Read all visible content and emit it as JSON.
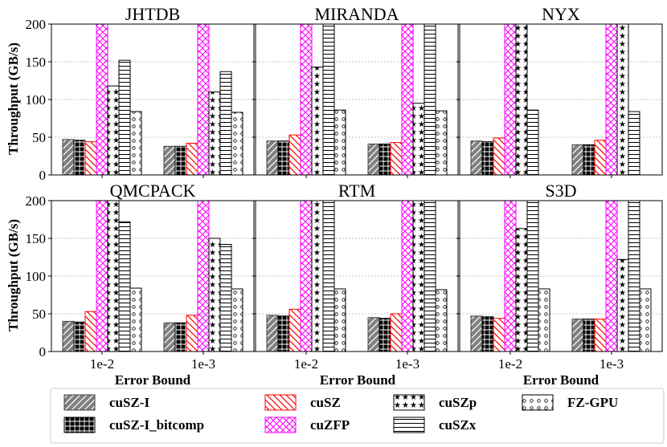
{
  "chart_data": {
    "type": "bar",
    "ylabel": "Throughput (GB/s)",
    "xlabel": "Error Bound",
    "ylim": [
      0,
      200
    ],
    "yticks": [
      0,
      50,
      100,
      150,
      200
    ],
    "categories": [
      "1e-2",
      "1e-3"
    ],
    "grid": "horizontal dashed",
    "legend_position": "bottom",
    "series_meta": [
      {
        "name": "cuSZ-I",
        "color": "#808080",
        "pattern": "diagonal"
      },
      {
        "name": "cuSZ-I_bitcomp",
        "color": "#000000",
        "pattern": "dense-grid"
      },
      {
        "name": "cuSZ",
        "color": "#ff0000",
        "pattern": "back-diagonal"
      },
      {
        "name": "cuZFP",
        "color": "#ff00ff",
        "pattern": "crosshatch"
      },
      {
        "name": "cuSZp",
        "color": "#000000",
        "pattern": "stars"
      },
      {
        "name": "cuSZx",
        "color": "#000000",
        "pattern": "horizontal-lines"
      },
      {
        "name": "FZ-GPU",
        "color": "#000000",
        "pattern": "small-circles"
      }
    ],
    "panels": [
      {
        "title": "JHTDB",
        "values": [
          [
            47,
            38
          ],
          [
            46,
            38
          ],
          [
            44,
            42
          ],
          [
            200,
            200
          ],
          [
            118,
            110
          ],
          [
            152,
            137
          ],
          [
            84,
            83
          ]
        ]
      },
      {
        "title": "MIRANDA",
        "values": [
          [
            45,
            41
          ],
          [
            45,
            41
          ],
          [
            53,
            43
          ],
          [
            200,
            200
          ],
          [
            143,
            95
          ],
          [
            200,
            200
          ],
          [
            86,
            85
          ]
        ]
      },
      {
        "title": "NYX",
        "values": [
          [
            45,
            40
          ],
          [
            44,
            40
          ],
          [
            49,
            46
          ],
          [
            200,
            200
          ],
          [
            200,
            200
          ],
          [
            86,
            84
          ],
          [
            0,
            0
          ]
        ]
      },
      {
        "title": "QMCPACK",
        "values": [
          [
            40,
            38
          ],
          [
            39,
            38
          ],
          [
            53,
            48
          ],
          [
            200,
            200
          ],
          [
            200,
            150
          ],
          [
            172,
            142
          ],
          [
            84,
            83
          ]
        ]
      },
      {
        "title": "RTM",
        "values": [
          [
            48,
            45
          ],
          [
            47,
            44
          ],
          [
            56,
            50
          ],
          [
            200,
            200
          ],
          [
            200,
            200
          ],
          [
            200,
            200
          ],
          [
            83,
            82
          ]
        ]
      },
      {
        "title": "S3D",
        "values": [
          [
            47,
            43
          ],
          [
            46,
            43
          ],
          [
            44,
            43
          ],
          [
            200,
            200
          ],
          [
            163,
            122
          ],
          [
            200,
            200
          ],
          [
            83,
            83
          ]
        ]
      }
    ]
  }
}
